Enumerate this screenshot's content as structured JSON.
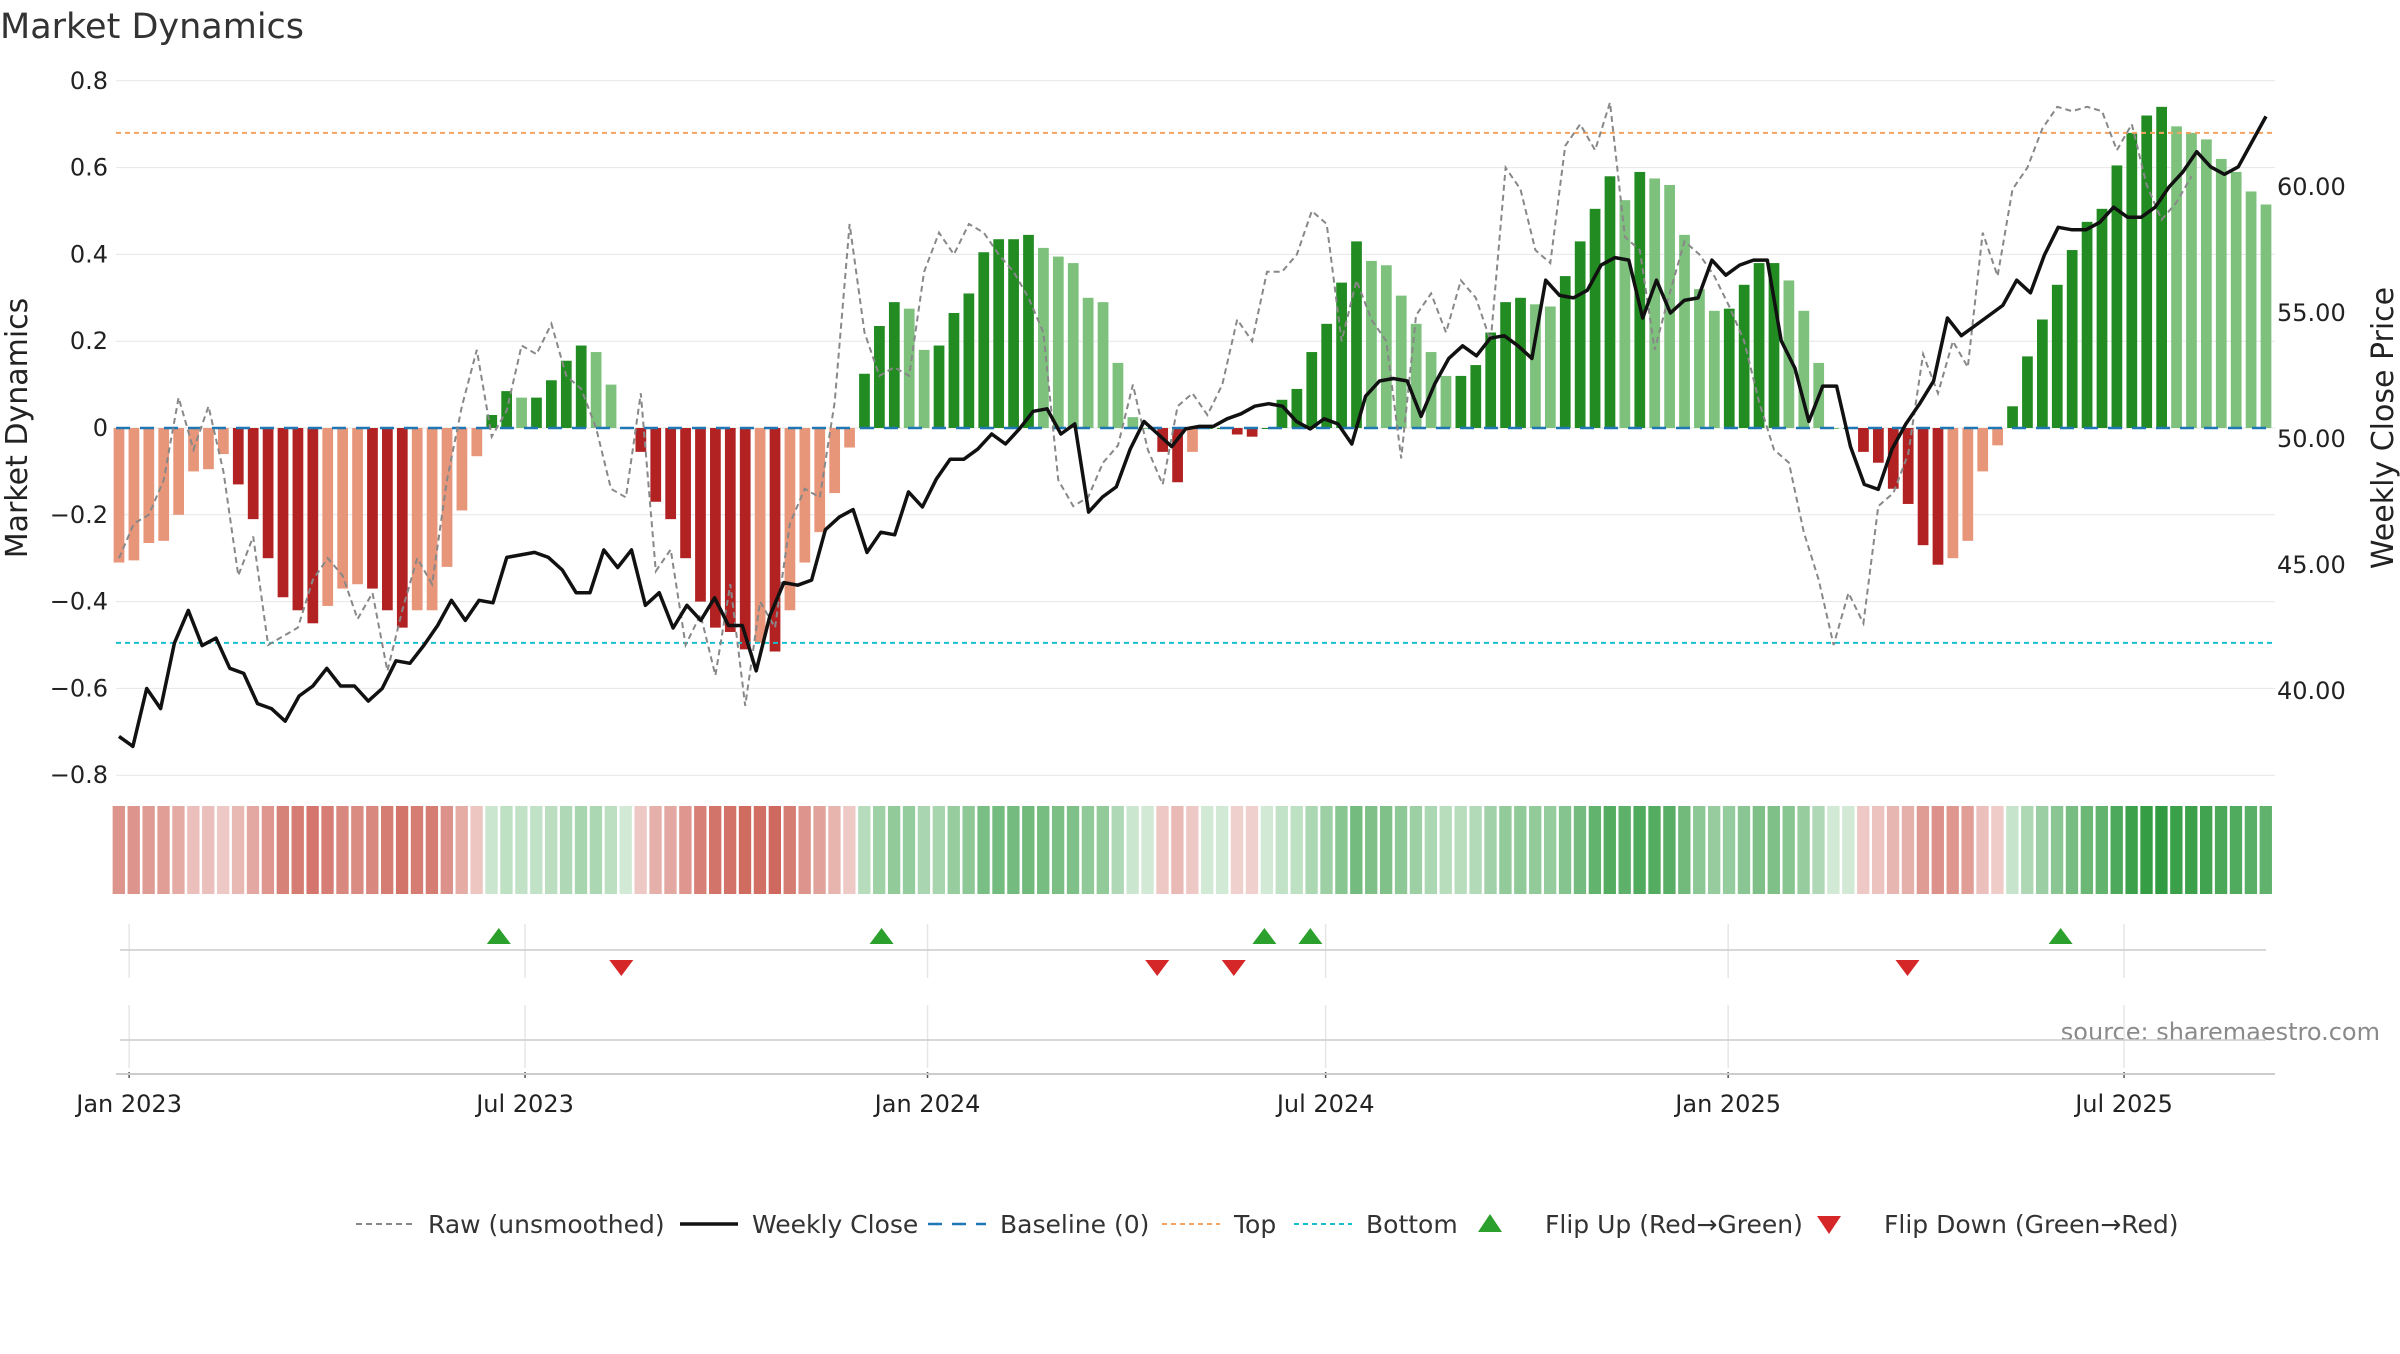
{
  "chart_data": {
    "type": "bar",
    "title": "Market Dynamics",
    "ylabel_left": "Market Dynamics",
    "ylabel_right": "Weekly Close Price",
    "source": "source: sharemaestro.com",
    "x_start": "2022-12-26",
    "x_end": "2025-09-08",
    "x_ticks": [
      {
        "date": "2023-01-01",
        "label": "Jan 2023"
      },
      {
        "date": "2023-07-01",
        "label": "Jul 2023"
      },
      {
        "date": "2024-01-01",
        "label": "Jan 2024"
      },
      {
        "date": "2024-07-01",
        "label": "Jul 2024"
      },
      {
        "date": "2025-01-01",
        "label": "Jan 2025"
      },
      {
        "date": "2025-07-01",
        "label": "Jul 2025"
      }
    ],
    "left_axis": {
      "range": [
        -0.8,
        0.8
      ],
      "ticks": [
        {
          "v": 0.8,
          "label": "0.8"
        },
        {
          "v": 0.6,
          "label": "0.6"
        },
        {
          "v": 0.4,
          "label": "0.4"
        },
        {
          "v": 0.2,
          "label": "0.2"
        },
        {
          "v": 0,
          "label": "0"
        },
        {
          "v": -0.2,
          "label": "−0.2"
        },
        {
          "v": -0.4,
          "label": "−0.4"
        },
        {
          "v": -0.6,
          "label": "−0.6"
        },
        {
          "v": -0.8,
          "label": "−0.8"
        }
      ]
    },
    "right_axis": {
      "range": [
        34.5,
        64.8
      ],
      "ticks": [
        {
          "v": 60,
          "label": "60.00"
        },
        {
          "v": 55,
          "label": "55.00"
        },
        {
          "v": 50,
          "label": "50.00"
        },
        {
          "v": 45,
          "label": "45.00"
        },
        {
          "v": 40,
          "label": "40.00"
        }
      ]
    },
    "reference_lines": {
      "top": 0.68,
      "bottom": -0.495,
      "baseline": 0
    },
    "bars_smoothed": [
      -0.31,
      -0.305,
      -0.265,
      -0.26,
      -0.2,
      -0.1,
      -0.095,
      -0.06,
      -0.13,
      -0.21,
      -0.3,
      -0.39,
      -0.42,
      -0.45,
      -0.41,
      -0.37,
      -0.36,
      -0.37,
      -0.42,
      -0.46,
      -0.42,
      -0.42,
      -0.32,
      -0.19,
      -0.065,
      0.03,
      0.085,
      0.07,
      0.07,
      0.11,
      0.155,
      0.19,
      0.175,
      0.1,
      0,
      -0.055,
      -0.17,
      -0.21,
      -0.3,
      -0.4,
      -0.46,
      -0.47,
      -0.51,
      -0.495,
      -0.515,
      -0.42,
      -0.31,
      -0.24,
      -0.15,
      -0.045,
      0.125,
      0.235,
      0.29,
      0.275,
      0.18,
      0.19,
      0.265,
      0.31,
      0.405,
      0.435,
      0.435,
      0.445,
      0.415,
      0.395,
      0.38,
      0.3,
      0.29,
      0.15,
      0.025,
      0,
      -0.055,
      -0.125,
      -0.055,
      0,
      0,
      -0.015,
      -0.02,
      0,
      0.065,
      0.09,
      0.175,
      0.24,
      0.335,
      0.43,
      0.385,
      0.375,
      0.305,
      0.24,
      0.175,
      0.12,
      0.12,
      0.145,
      0.22,
      0.29,
      0.3,
      0.285,
      0.28,
      0.35,
      0.43,
      0.505,
      0.58,
      0.525,
      0.59,
      0.575,
      0.56,
      0.445,
      0.32,
      0.27,
      0.275,
      0.33,
      0.38,
      0.38,
      0.34,
      0.27,
      0.15,
      0,
      0,
      -0.055,
      -0.08,
      -0.14,
      -0.175,
      -0.27,
      -0.315,
      -0.3,
      -0.26,
      -0.1,
      -0.04,
      0.05,
      0.165,
      0.25,
      0.33,
      0.41,
      0.475,
      0.505,
      0.605,
      0.68,
      0.72,
      0.74,
      0.695,
      0.68,
      0.665,
      0.62,
      0.59,
      0.545,
      0.515
    ],
    "raw_unsmoothed": [
      -0.3,
      -0.22,
      -0.2,
      -0.12,
      0.07,
      -0.05,
      0.05,
      -0.1,
      -0.34,
      -0.25,
      -0.5,
      -0.48,
      -0.46,
      -0.35,
      -0.3,
      -0.34,
      -0.44,
      -0.38,
      -0.56,
      -0.42,
      -0.3,
      -0.36,
      -0.12,
      0.05,
      0.18,
      -0.02,
      0.04,
      0.19,
      0.17,
      0.24,
      0.12,
      0.09,
      0,
      -0.14,
      -0.16,
      0.08,
      -0.33,
      -0.28,
      -0.5,
      -0.43,
      -0.57,
      -0.36,
      -0.64,
      -0.4,
      -0.46,
      -0.22,
      -0.14,
      -0.16,
      0.06,
      0.47,
      0.22,
      0.12,
      0.14,
      0.12,
      0.36,
      0.45,
      0.4,
      0.47,
      0.45,
      0.4,
      0.36,
      0.3,
      0.22,
      -0.12,
      -0.18,
      -0.16,
      -0.08,
      -0.04,
      0.1,
      -0.05,
      -0.13,
      0.05,
      0.08,
      0.03,
      0.1,
      0.25,
      0.2,
      0.36,
      0.36,
      0.4,
      0.5,
      0.47,
      0.2,
      0.34,
      0.25,
      0.2,
      -0.07,
      0.26,
      0.31,
      0.22,
      0.34,
      0.3,
      0.2,
      0.6,
      0.55,
      0.41,
      0.38,
      0.65,
      0.7,
      0.64,
      0.75,
      0.44,
      0.41,
      0.18,
      0.31,
      0.43,
      0.4,
      0.35,
      0.28,
      0.2,
      0.06,
      -0.05,
      -0.08,
      -0.24,
      -0.35,
      -0.5,
      -0.38,
      -0.45,
      -0.18,
      -0.15,
      -0.06,
      0.17,
      0.08,
      0.2,
      0.14,
      0.45,
      0.35,
      0.55,
      0.6,
      0.69,
      0.74,
      0.73,
      0.74,
      0.73,
      0.64,
      0.7,
      0.56,
      0.48,
      0.52,
      0.58
    ],
    "weekly_close": [
      38.2,
      37.8,
      40.1,
      39.3,
      41.9,
      43.2,
      41.8,
      42.1,
      40.9,
      40.7,
      39.5,
      39.3,
      38.8,
      39.8,
      40.2,
      40.9,
      40.2,
      40.2,
      39.6,
      40.1,
      41.2,
      41.1,
      41.8,
      42.6,
      43.6,
      42.8,
      43.6,
      43.5,
      45.3,
      45.4,
      45.5,
      45.3,
      44.8,
      43.9,
      43.9,
      45.6,
      44.9,
      45.6,
      43.4,
      43.9,
      42.5,
      43.4,
      42.8,
      43.7,
      42.6,
      42.6,
      40.8,
      43.0,
      44.3,
      44.2,
      44.4,
      46.4,
      46.9,
      47.2,
      45.5,
      46.3,
      46.2,
      47.9,
      47.3,
      48.4,
      49.2,
      49.2,
      49.6,
      50.2,
      49.8,
      50.4,
      51.1,
      51.2,
      50.2,
      50.6,
      47.1,
      47.7,
      48.1,
      49.6,
      50.7,
      50.2,
      49.7,
      50.4,
      50.5,
      50.5,
      50.8,
      51.0,
      51.3,
      51.4,
      51.3,
      50.7,
      50.4,
      50.8,
      50.6,
      49.8,
      51.7,
      52.3,
      52.4,
      52.3,
      50.9,
      52.2,
      53.2,
      53.7,
      53.3,
      54.0,
      54.1,
      53.7,
      53.2,
      56.3,
      55.7,
      55.6,
      55.9,
      56.9,
      57.2,
      57.1,
      54.8,
      56.3,
      55.0,
      55.5,
      55.6,
      57.1,
      56.5,
      56.9,
      57.1,
      57.1,
      53.9,
      52.8,
      50.7,
      52.1,
      52.1,
      49.7,
      48.2,
      48.0,
      49.6,
      50.6,
      51.4,
      52.3,
      54.8,
      54.1,
      54.5,
      54.9,
      55.3,
      56.3,
      55.8,
      57.3,
      58.4,
      58.3,
      58.3,
      58.6,
      59.2,
      58.8,
      58.8,
      59.2,
      60.0,
      60.6,
      61.4,
      60.8,
      60.5,
      60.8,
      61.8,
      62.8
    ],
    "price_start_index": 0,
    "price_step_weeks": 0.88,
    "flips_up": [
      {
        "date": "2023-06-19",
        "row": "up"
      },
      {
        "date": "2023-12-11",
        "row": "up"
      },
      {
        "date": "2024-06-03",
        "row": "up"
      },
      {
        "date": "2024-06-24",
        "row": "up"
      },
      {
        "date": "2025-06-02",
        "row": "up"
      }
    ],
    "flips_down": [
      {
        "date": "2023-08-14",
        "row": "down"
      },
      {
        "date": "2024-04-15",
        "row": "down"
      },
      {
        "date": "2024-05-20",
        "row": "down"
      },
      {
        "date": "2025-03-24",
        "row": "down"
      }
    ],
    "colors": {
      "green_strong": "#228b22",
      "green_weak": "#7dc17d",
      "red_strong": "#b22222",
      "red_weak": "#e8967a",
      "raw_line": "#888888",
      "close_line": "#111111",
      "baseline": "#1f77b4",
      "top": "#f4a460",
      "bottom": "#17becf",
      "flip_up": "#2ca02c",
      "flip_down": "#d62728",
      "grid": "#e6e6e6"
    },
    "legend": [
      {
        "key": "raw",
        "label": "Raw (unsmoothed)"
      },
      {
        "key": "close",
        "label": "Weekly Close"
      },
      {
        "key": "baseline",
        "label": "Baseline (0)"
      },
      {
        "key": "top",
        "label": "Top"
      },
      {
        "key": "bottom",
        "label": "Bottom"
      },
      {
        "key": "flip_up",
        "label": "Flip Up (Red→Green)"
      },
      {
        "key": "flip_down",
        "label": "Flip Down (Green→Red)"
      }
    ]
  }
}
